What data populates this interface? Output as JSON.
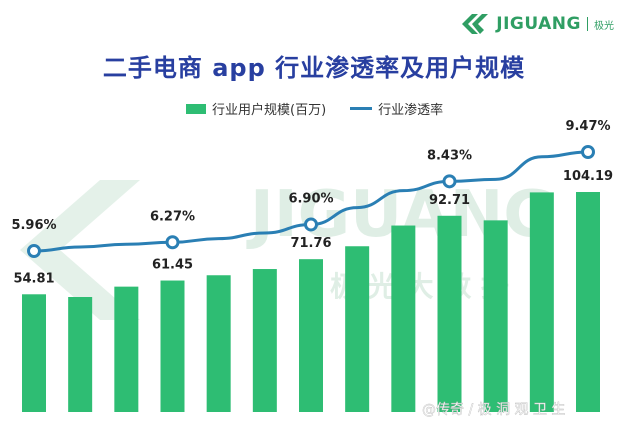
{
  "brand": {
    "logo_text": "JIGUANG",
    "logo_cn": "极光",
    "watermark_en": "JIGUANG",
    "watermark_cn": "极 光 大 数 据",
    "footer_cn": "@传奇 / 极 洞 观 卫 生"
  },
  "colors": {
    "bar": "#2ebd73",
    "line": "#2a7fb4",
    "title": "#283fa0"
  },
  "chart_data": {
    "type": "bar",
    "title": "二手电商 app 行业渗透率及用户规模",
    "legend": [
      "行业用户规模(百万)",
      "行业渗透率"
    ],
    "legend_position": "top",
    "grid": false,
    "series": [
      {
        "name": "行业用户规模(百万)",
        "type": "bar",
        "values": [
          54.81,
          53.5,
          58.5,
          61.45,
          64.0,
          67.0,
          71.76,
          78.0,
          88.0,
          92.71,
          90.5,
          104.0,
          104.19
        ],
        "labels": [
          "54.81",
          "",
          "",
          "61.45",
          "",
          "",
          "71.76",
          "",
          "",
          "92.71",
          "",
          "",
          "104.19"
        ]
      },
      {
        "name": "行业渗透率",
        "type": "line",
        "points": [
          {
            "index": 0,
            "value": 5.96,
            "label": "5.96%"
          },
          {
            "index": 3,
            "value": 6.27,
            "label": "6.27%"
          },
          {
            "index": 6,
            "value": 6.9,
            "label": "6.90%"
          },
          {
            "index": 9,
            "value": 8.43,
            "label": "8.43%"
          },
          {
            "index": 12,
            "value": 9.47,
            "label": "9.47%"
          }
        ],
        "curve": [
          5.96,
          6.1,
          6.2,
          6.27,
          6.4,
          6.6,
          6.9,
          7.5,
          8.1,
          8.43,
          8.5,
          9.3,
          9.47
        ]
      }
    ],
    "y_bar_range": [
      0,
      110
    ],
    "y_line_range": [
      4,
      10
    ]
  }
}
